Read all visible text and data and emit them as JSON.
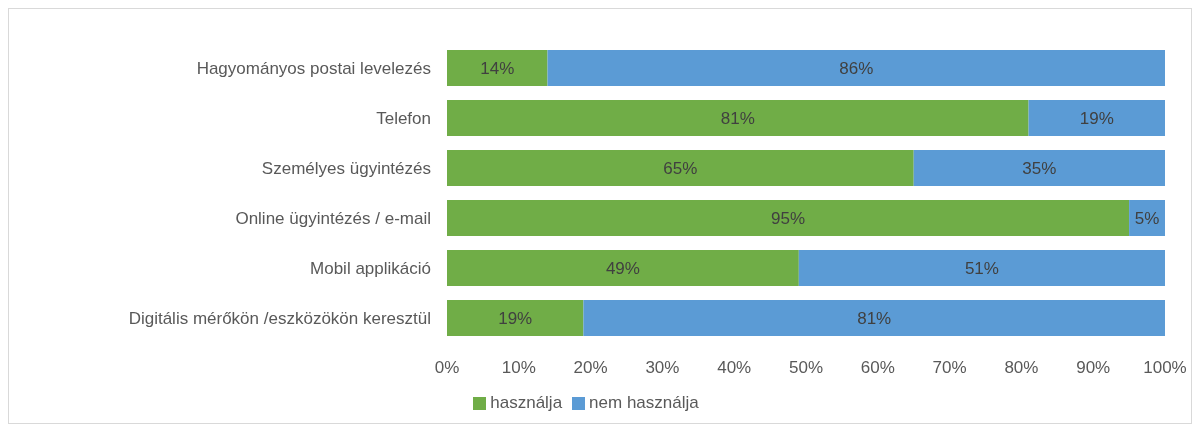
{
  "chart_data": {
    "type": "bar",
    "orientation": "horizontal",
    "stacked": true,
    "categories": [
      "Hagyományos postai levelezés",
      "Telefon",
      "Személyes ügyintézés",
      "Online ügyintézés / e-mail",
      "Mobil applikáció",
      "Digitális mérőkön /eszközökön keresztül"
    ],
    "series": [
      {
        "name": "használja",
        "color": "#70ad47",
        "values": [
          14,
          81,
          65,
          95,
          49,
          19
        ],
        "value_labels": [
          "14%",
          "81%",
          "65%",
          "95%",
          "49%",
          "19%"
        ]
      },
      {
        "name": "nem használja",
        "color": "#5b9bd5",
        "values": [
          86,
          19,
          35,
          5,
          51,
          81
        ],
        "value_labels": [
          "86%",
          "19%",
          "35%",
          "5%",
          "51%",
          "81%"
        ]
      }
    ],
    "xlim": [
      0,
      100
    ],
    "xticks": [
      {
        "value": 0,
        "label": "0%"
      },
      {
        "value": 10,
        "label": "10%"
      },
      {
        "value": 20,
        "label": "20%"
      },
      {
        "value": 30,
        "label": "30%"
      },
      {
        "value": 40,
        "label": "40%"
      },
      {
        "value": 50,
        "label": "50%"
      },
      {
        "value": 60,
        "label": "60%"
      },
      {
        "value": 70,
        "label": "70%"
      },
      {
        "value": 80,
        "label": "80%"
      },
      {
        "value": 90,
        "label": "90%"
      },
      {
        "value": 100,
        "label": "100%"
      }
    ],
    "grid": false,
    "legend": "bottom"
  }
}
